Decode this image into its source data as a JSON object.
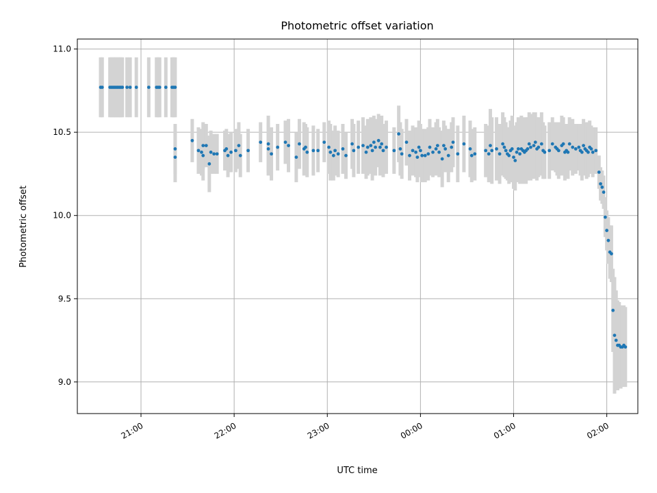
{
  "chart_data": {
    "type": "scatter",
    "title": "Photometric offset variation",
    "xlabel": "UTC time",
    "ylabel": "Photometric offset",
    "x_type": "time",
    "xlim": [
      "20:19",
      "02:20"
    ],
    "ylim": [
      8.81,
      11.06
    ],
    "x_ticks": [
      "21:00",
      "22:00",
      "23:00",
      "00:00",
      "01:00",
      "02:00"
    ],
    "y_ticks": [
      9.0,
      9.5,
      10.0,
      10.5,
      11.0
    ],
    "y_tick_labels": [
      "9.0",
      "9.5",
      "10.0",
      "10.5",
      "11.0"
    ],
    "grid": true,
    "marker_color": "#1f77b4",
    "errorbar_color": "#d3d3d3",
    "series": [
      {
        "times": [
          "20:34",
          "20:35",
          "20:40",
          "20:41",
          "20:42",
          "20:43",
          "20:44",
          "20:45",
          "20:46",
          "20:47",
          "20:48",
          "20:51",
          "20:53",
          "20:57",
          "21:05",
          "21:10",
          "21:11",
          "21:12",
          "21:16",
          "21:20",
          "21:21",
          "21:22",
          "21:22",
          "21:22",
          "21:33",
          "21:37",
          "21:39",
          "21:40",
          "21:40",
          "21:42",
          "21:44",
          "21:45",
          "21:47",
          "21:49",
          "21:54",
          "21:55",
          "21:56",
          "21:58",
          "22:01",
          "22:03",
          "22:04",
          "22:09",
          "22:17",
          "22:22",
          "22:22",
          "22:24",
          "22:28",
          "22:33",
          "22:35",
          "22:40",
          "22:42",
          "22:45",
          "22:46",
          "22:47",
          "22:51",
          "22:54",
          "22:58",
          "23:01",
          "23:02",
          "23:04",
          "23:05",
          "23:07",
          "23:10",
          "23:12",
          "23:16",
          "23:17",
          "23:20",
          "23:23",
          "23:25",
          "23:26",
          "23:28",
          "23:29",
          "23:30",
          "23:31",
          "23:33",
          "23:34",
          "23:35",
          "23:36",
          "23:38",
          "23:43",
          "23:46",
          "23:47",
          "23:48",
          "23:51",
          "23:53",
          "23:55",
          "23:57",
          "23:58",
          "23:59",
          "00:00",
          "00:01",
          "00:03",
          "00:05",
          "00:06",
          "00:08",
          "00:10",
          "00:11",
          "00:12",
          "00:14",
          "00:15",
          "00:16",
          "00:18",
          "00:20",
          "00:21",
          "00:24",
          "00:28",
          "00:32",
          "00:33",
          "00:35",
          "00:42",
          "00:44",
          "00:45",
          "00:46",
          "00:49",
          "00:51",
          "00:53",
          "00:54",
          "00:55",
          "00:56",
          "00:57",
          "00:58",
          "00:59",
          "01:00",
          "01:01",
          "01:02",
          "01:03",
          "01:04",
          "01:05",
          "01:06",
          "01:07",
          "01:08",
          "01:09",
          "01:10",
          "01:11",
          "01:13",
          "01:14",
          "01:15",
          "01:16",
          "01:18",
          "01:19",
          "01:20",
          "01:23",
          "01:25",
          "01:27",
          "01:28",
          "01:29",
          "01:31",
          "01:32",
          "01:33",
          "01:34",
          "01:35",
          "01:36",
          "01:38",
          "01:40",
          "01:42",
          "01:43",
          "01:44",
          "01:45",
          "01:46",
          "01:47",
          "01:48",
          "01:49",
          "01:50",
          "01:51",
          "01:53",
          "01:55",
          "01:56",
          "01:57",
          "01:58",
          "01:59",
          "02:00",
          "02:01",
          "02:02",
          "02:03",
          "02:04",
          "02:05",
          "02:06",
          "02:07",
          "02:08",
          "02:09",
          "02:10",
          "02:11",
          "02:12"
        ],
        "y": [
          10.77,
          10.77,
          10.77,
          10.77,
          10.77,
          10.77,
          10.77,
          10.77,
          10.77,
          10.77,
          10.77,
          10.77,
          10.77,
          10.77,
          10.77,
          10.77,
          10.77,
          10.77,
          10.77,
          10.77,
          10.77,
          10.77,
          10.35,
          10.4,
          10.45,
          10.39,
          10.38,
          10.36,
          10.42,
          10.42,
          10.31,
          10.38,
          10.37,
          10.37,
          10.39,
          10.4,
          10.36,
          10.38,
          10.39,
          10.42,
          10.36,
          10.39,
          10.44,
          10.4,
          10.43,
          10.37,
          10.41,
          10.44,
          10.42,
          10.35,
          10.43,
          10.4,
          10.41,
          10.38,
          10.39,
          10.39,
          10.44,
          10.41,
          10.38,
          10.36,
          10.39,
          10.37,
          10.4,
          10.36,
          10.43,
          10.39,
          10.41,
          10.42,
          10.38,
          10.41,
          10.42,
          10.39,
          10.44,
          10.41,
          10.45,
          10.41,
          10.43,
          10.39,
          10.41,
          10.39,
          10.49,
          10.4,
          10.37,
          10.44,
          10.36,
          10.39,
          10.38,
          10.35,
          10.41,
          10.39,
          10.36,
          10.36,
          10.37,
          10.41,
          10.38,
          10.4,
          10.42,
          10.38,
          10.34,
          10.42,
          10.4,
          10.36,
          10.41,
          10.44,
          10.37,
          10.43,
          10.4,
          10.36,
          10.37,
          10.39,
          10.37,
          10.42,
          10.39,
          10.4,
          10.37,
          10.43,
          10.41,
          10.39,
          10.37,
          10.36,
          10.39,
          10.4,
          10.35,
          10.33,
          10.38,
          10.4,
          10.37,
          10.4,
          10.39,
          10.38,
          10.39,
          10.4,
          10.43,
          10.41,
          10.42,
          10.44,
          10.4,
          10.41,
          10.43,
          10.39,
          10.38,
          10.39,
          10.43,
          10.41,
          10.4,
          10.39,
          10.42,
          10.43,
          10.38,
          10.39,
          10.38,
          10.43,
          10.41,
          10.4,
          10.41,
          10.39,
          10.38,
          10.42,
          10.4,
          10.39,
          10.38,
          10.41,
          10.4,
          10.38,
          10.39,
          10.26,
          10.19,
          10.17,
          10.14,
          9.99,
          9.91,
          9.85,
          9.78,
          9.77,
          9.43,
          9.28,
          9.25,
          9.22,
          9.22,
          9.21,
          9.21,
          9.22,
          9.21
        ],
        "err": [
          0.18,
          0.18,
          0.18,
          0.18,
          0.18,
          0.18,
          0.18,
          0.18,
          0.18,
          0.18,
          0.18,
          0.18,
          0.18,
          0.18,
          0.18,
          0.18,
          0.18,
          0.18,
          0.18,
          0.18,
          0.18,
          0.18,
          0.15,
          0.15,
          0.13,
          0.14,
          0.14,
          0.15,
          0.14,
          0.13,
          0.17,
          0.13,
          0.12,
          0.12,
          0.12,
          0.12,
          0.13,
          0.12,
          0.13,
          0.14,
          0.13,
          0.13,
          0.12,
          0.16,
          0.17,
          0.16,
          0.14,
          0.13,
          0.16,
          0.15,
          0.15,
          0.16,
          0.14,
          0.15,
          0.15,
          0.13,
          0.12,
          0.16,
          0.17,
          0.15,
          0.15,
          0.14,
          0.15,
          0.14,
          0.15,
          0.16,
          0.16,
          0.17,
          0.16,
          0.17,
          0.17,
          0.18,
          0.16,
          0.17,
          0.16,
          0.17,
          0.17,
          0.16,
          0.16,
          0.14,
          0.17,
          0.16,
          0.15,
          0.14,
          0.15,
          0.15,
          0.15,
          0.15,
          0.16,
          0.16,
          0.16,
          0.16,
          0.16,
          0.17,
          0.15,
          0.16,
          0.16,
          0.15,
          0.17,
          0.15,
          0.14,
          0.16,
          0.15,
          0.15,
          0.17,
          0.17,
          0.17,
          0.16,
          0.16,
          0.16,
          0.17,
          0.22,
          0.2,
          0.19,
          0.18,
          0.19,
          0.18,
          0.17,
          0.16,
          0.17,
          0.18,
          0.2,
          0.19,
          0.18,
          0.18,
          0.19,
          0.18,
          0.2,
          0.2,
          0.19,
          0.2,
          0.19,
          0.19,
          0.2,
          0.2,
          0.18,
          0.19,
          0.18,
          0.19,
          0.17,
          0.16,
          0.17,
          0.16,
          0.15,
          0.16,
          0.17,
          0.18,
          0.16,
          0.17,
          0.16,
          0.16,
          0.16,
          0.17,
          0.15,
          0.14,
          0.15,
          0.17,
          0.16,
          0.16,
          0.17,
          0.15,
          0.16,
          0.14,
          0.15,
          0.14,
          0.1,
          0.1,
          0.1,
          0.1,
          0.12,
          0.12,
          0.14,
          0.16,
          0.17,
          0.25,
          0.35,
          0.3,
          0.27,
          0.26,
          0.25,
          0.24,
          0.24,
          0.24
        ]
      }
    ]
  }
}
